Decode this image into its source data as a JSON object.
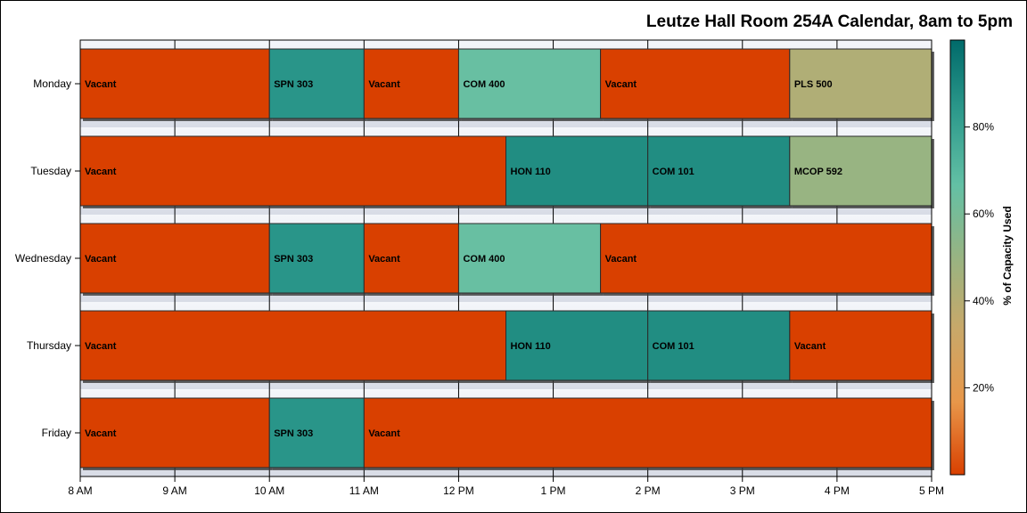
{
  "chart_data": {
    "type": "bar",
    "orientation": "horizontal",
    "title": "Leutze Hall Room 254A Calendar, 8am to 5pm",
    "categories": [
      "Monday",
      "Tuesday",
      "Wednesday",
      "Thursday",
      "Friday"
    ],
    "x_ticks": [
      "8 AM",
      "9 AM",
      "10 AM",
      "11 AM",
      "12 PM",
      "1 PM",
      "2 PM",
      "3 PM",
      "4 PM",
      "5 PM"
    ],
    "xlim": [
      8,
      17
    ],
    "grid": true,
    "colorbar": {
      "label": "% of Capacity Used",
      "position": "right",
      "range": [
        0,
        100
      ],
      "ticks": [
        "20%",
        "40%",
        "60%",
        "80%"
      ],
      "tick_values": [
        20,
        40,
        60,
        80
      ],
      "colors": [
        "#d94000",
        "#e8974a",
        "#c9a869",
        "#98b482",
        "#63c0a5",
        "#2e9a8c",
        "#006a6a"
      ]
    },
    "bars": [
      {
        "day": "Monday",
        "start": 8,
        "end": 10,
        "label": "Vacant",
        "capacity": 0
      },
      {
        "day": "Monday",
        "start": 10,
        "end": 11,
        "label": "SPN 303",
        "capacity": 85
      },
      {
        "day": "Monday",
        "start": 11,
        "end": 12,
        "label": "Vacant",
        "capacity": 0
      },
      {
        "day": "Monday",
        "start": 12,
        "end": 13.5,
        "label": "COM 400",
        "capacity": 65
      },
      {
        "day": "Monday",
        "start": 13.5,
        "end": 15.5,
        "label": "Vacant",
        "capacity": 0
      },
      {
        "day": "Monday",
        "start": 15.5,
        "end": 17,
        "label": "PLS 500",
        "capacity": 42
      },
      {
        "day": "Tuesday",
        "start": 8,
        "end": 12.5,
        "label": "Vacant",
        "capacity": 0
      },
      {
        "day": "Tuesday",
        "start": 12.5,
        "end": 14,
        "label": "HON 110",
        "capacity": 88
      },
      {
        "day": "Tuesday",
        "start": 14,
        "end": 15.5,
        "label": "COM 101",
        "capacity": 88
      },
      {
        "day": "Tuesday",
        "start": 15.5,
        "end": 17,
        "label": "MCOP 592",
        "capacity": 50
      },
      {
        "day": "Wednesday",
        "start": 8,
        "end": 10,
        "label": "Vacant",
        "capacity": 0
      },
      {
        "day": "Wednesday",
        "start": 10,
        "end": 11,
        "label": "SPN 303",
        "capacity": 85
      },
      {
        "day": "Wednesday",
        "start": 11,
        "end": 12,
        "label": "Vacant",
        "capacity": 0
      },
      {
        "day": "Wednesday",
        "start": 12,
        "end": 13.5,
        "label": "COM 400",
        "capacity": 65
      },
      {
        "day": "Wednesday",
        "start": 13.5,
        "end": 17,
        "label": "Vacant",
        "capacity": 0
      },
      {
        "day": "Thursday",
        "start": 8,
        "end": 12.5,
        "label": "Vacant",
        "capacity": 0
      },
      {
        "day": "Thursday",
        "start": 12.5,
        "end": 14,
        "label": "HON 110",
        "capacity": 88
      },
      {
        "day": "Thursday",
        "start": 14,
        "end": 15.5,
        "label": "COM 101",
        "capacity": 88
      },
      {
        "day": "Thursday",
        "start": 15.5,
        "end": 17,
        "label": "Vacant",
        "capacity": 0
      },
      {
        "day": "Friday",
        "start": 8,
        "end": 10,
        "label": "Vacant",
        "capacity": 0
      },
      {
        "day": "Friday",
        "start": 10,
        "end": 11,
        "label": "SPN 303",
        "capacity": 85
      },
      {
        "day": "Friday",
        "start": 11,
        "end": 17,
        "label": "Vacant",
        "capacity": 0
      }
    ]
  }
}
